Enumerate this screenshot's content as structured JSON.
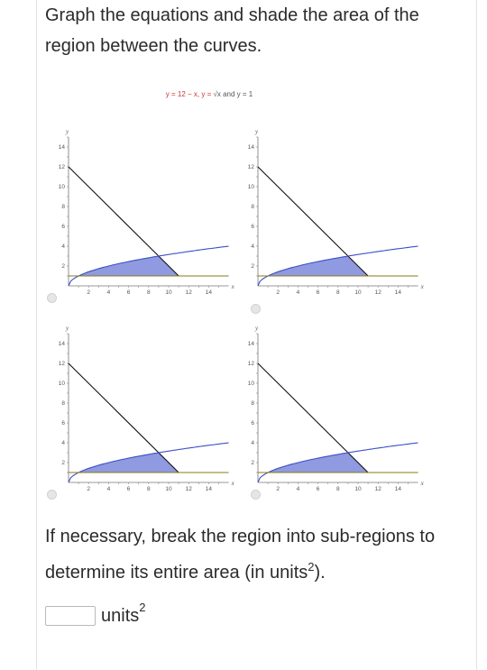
{
  "question": {
    "line1": "Graph the equations and shade the area of the",
    "line2": "region between the curves."
  },
  "figure": {
    "title_parts": [
      "y = 12 − x, y = ",
      "√x",
      " and y = 1"
    ],
    "tick_labels_x": [
      "2",
      "4",
      "6",
      "8",
      "10",
      "12",
      "14"
    ],
    "tick_labels_y": [
      "2",
      "4",
      "6",
      "8",
      "10",
      "12",
      "14"
    ],
    "x_axis_label": "x",
    "y_axis_label": "y",
    "colors": {
      "line": "#111111",
      "sqrt_curve": "#3a4fc4",
      "horizontal_line": "#8c7a14",
      "shade": "#8f9ae0",
      "title_red": "#cc3333"
    },
    "options": [
      {
        "id": "a",
        "shade_type": "region bounded by y=√x, y=12−x above y=1 (left of intersection x=9, upper part)"
      },
      {
        "id": "b",
        "shade_type": "region between y=√x and y=1 from x=1 to intersection, then y=12−x to y=1"
      },
      {
        "id": "c",
        "shade_type": "region from y-axis bounded above by √x and 12−x, below by y=1"
      },
      {
        "id": "d",
        "shade_type": "region under √x and 12−x down to y=1 starting x=1"
      }
    ],
    "chart_data": [
      {
        "type": "line",
        "series": [
          {
            "values": [
              [
                0,
                12
              ],
              [
                11,
                1
              ]
            ]
          },
          {
            "values": [
              [
                0,
                0
              ],
              [
                1,
                1
              ],
              [
                4,
                2
              ],
              [
                9,
                3
              ],
              [
                16,
                4
              ]
            ]
          },
          {
            "values": [
              [
                0,
                1
              ],
              [
                16,
                1
              ]
            ]
          }
        ],
        "shaded_region": {
          "x_from": 1,
          "x_to": 11,
          "upper": "min(√x, 12−x)",
          "lower": 1
        },
        "xlim": [
          0,
          16
        ],
        "ylim": [
          0,
          15
        ]
      },
      {
        "type": "line",
        "series": [
          {
            "values": [
              [
                0,
                12
              ],
              [
                11,
                1
              ]
            ]
          },
          {
            "values": [
              [
                0,
                0
              ],
              [
                1,
                1
              ],
              [
                4,
                2
              ],
              [
                9,
                3
              ],
              [
                16,
                4
              ]
            ]
          },
          {
            "values": [
              [
                0,
                1
              ],
              [
                16,
                1
              ]
            ]
          }
        ],
        "shaded_region": {
          "x_from": 1,
          "x_to": 11,
          "upper": "min(√x, 12−x)",
          "lower": 1
        },
        "xlim": [
          0,
          16
        ],
        "ylim": [
          0,
          15
        ]
      },
      {
        "type": "line",
        "series": [
          {
            "values": [
              [
                0,
                12
              ],
              [
                11,
                1
              ]
            ]
          },
          {
            "values": [
              [
                0,
                0
              ],
              [
                1,
                1
              ],
              [
                4,
                2
              ],
              [
                9,
                3
              ],
              [
                16,
                4
              ]
            ]
          },
          {
            "values": [
              [
                0,
                1
              ],
              [
                16,
                1
              ]
            ]
          }
        ],
        "shaded_region": {
          "x_from": 0,
          "x_to": 11,
          "upper": "min(√x, 12−x)",
          "lower": 1
        },
        "xlim": [
          0,
          16
        ],
        "ylim": [
          0,
          15
        ]
      },
      {
        "type": "line",
        "series": [
          {
            "values": [
              [
                0,
                12
              ],
              [
                11,
                1
              ]
            ]
          },
          {
            "values": [
              [
                0,
                0
              ],
              [
                1,
                1
              ],
              [
                4,
                2
              ],
              [
                9,
                3
              ],
              [
                16,
                4
              ]
            ]
          },
          {
            "values": [
              [
                0,
                1
              ],
              [
                16,
                1
              ]
            ]
          }
        ],
        "shaded_region": {
          "x_from": 1,
          "x_to": 11,
          "upper": "min(√x, 12−x)",
          "lower": 1
        },
        "xlim": [
          0,
          16
        ],
        "ylim": [
          0,
          15
        ]
      }
    ]
  },
  "instruction": {
    "line1": "If necessary, break the region into sub-regions to",
    "line2_prefix": "determine its entire area (in units",
    "line2_sup": "2",
    "line2_suffix": ")."
  },
  "answer": {
    "value": "",
    "placeholder": "",
    "unit_label": "units",
    "unit_sup": "2"
  }
}
